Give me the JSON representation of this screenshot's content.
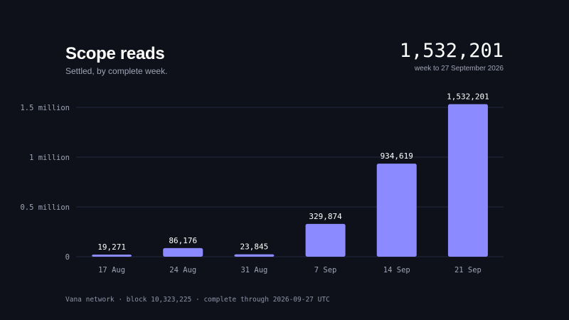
{
  "header": {
    "title": "Scope reads",
    "subtitle": "Settled, by complete week.",
    "headline_value": "1,532,201",
    "headline_caption": "week to 27 September 2026"
  },
  "footer": {
    "text": "Vana network · block 10,323,225 · complete through 2026-09-27 UTC"
  },
  "colors": {
    "background": "#0f111a",
    "bar": "#8b8bff",
    "gridline": "#23263a",
    "axis_text": "#9ea3b5",
    "label_text": "#ffffff"
  },
  "chart_data": {
    "type": "bar",
    "title": "Scope reads",
    "subtitle": "Settled, by complete week.",
    "xlabel": "",
    "ylabel": "",
    "categories": [
      "17 Aug",
      "24 Aug",
      "31 Aug",
      "7 Sep",
      "14 Sep",
      "21 Sep"
    ],
    "values": [
      19271,
      86176,
      23845,
      329874,
      934619,
      1532201
    ],
    "value_labels": [
      "19,271",
      "86,176",
      "23,845",
      "329,874",
      "934,619",
      "1,532,201"
    ],
    "ylim": [
      0,
      1500000
    ],
    "yticks": [
      0,
      500000,
      1000000,
      1500000
    ],
    "ytick_labels": [
      "0",
      "0.5 million",
      "1 million",
      "1.5 million"
    ],
    "grid": true,
    "legend": "none"
  }
}
